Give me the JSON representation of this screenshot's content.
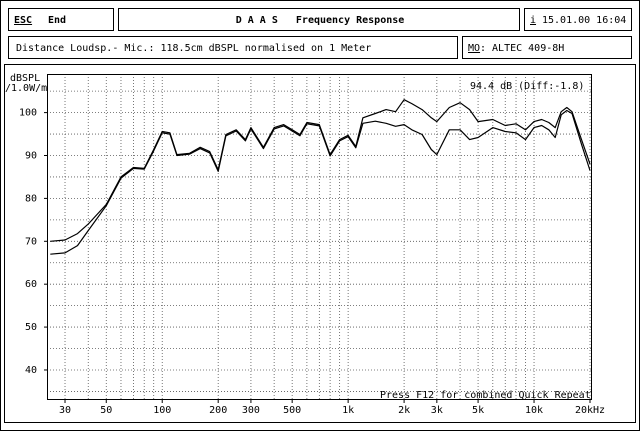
{
  "header": {
    "esc_key": "ESC",
    "esc_label": "End",
    "title": "D A A S   Frequency Response",
    "info_key": "i",
    "datetime": "15.01.00 16:04",
    "description": "Distance Loudsp.- Mic.: 118.5cm dBSPL normalised on 1 Meter",
    "model_key": "MO",
    "model": ": ALTEC 409-8H"
  },
  "chart_data": {
    "type": "line",
    "y_label": [
      "dBSPL",
      "/1.0W/m"
    ],
    "annotation": "94.4 dB (Diff:-1.8)",
    "footer_note": "Press F12 for combined Quick Repeat",
    "log_x": true,
    "grid": true,
    "xlim": [
      24,
      20500
    ],
    "ylim": [
      33,
      109
    ],
    "xticks": [
      30,
      50,
      100,
      200,
      300,
      500,
      {
        "value": 1000,
        "label": "1k"
      },
      {
        "value": 2000,
        "label": "2k"
      },
      {
        "value": 3000,
        "label": "3k"
      },
      {
        "value": 5000,
        "label": "5k"
      },
      {
        "value": 10000,
        "label": "10k"
      },
      {
        "value": 20000,
        "label": "20kHz"
      }
    ],
    "xgrid": [
      30,
      40,
      50,
      60,
      70,
      80,
      90,
      100,
      200,
      300,
      400,
      500,
      600,
      700,
      800,
      900,
      1000,
      2000,
      3000,
      4000,
      5000,
      6000,
      7000,
      8000,
      9000,
      10000,
      20000
    ],
    "yticks": [
      40,
      50,
      60,
      70,
      80,
      90,
      100
    ],
    "ygrid": [
      35,
      40,
      45,
      50,
      55,
      60,
      65,
      70,
      75,
      80,
      85,
      90,
      95,
      100,
      105
    ],
    "x": [
      25,
      30,
      35,
      40,
      50,
      60,
      70,
      80,
      90,
      100,
      110,
      120,
      140,
      160,
      180,
      200,
      220,
      250,
      280,
      300,
      350,
      400,
      450,
      500,
      550,
      600,
      700,
      800,
      900,
      1000,
      1100,
      1200,
      1400,
      1600,
      1800,
      2000,
      2200,
      2500,
      2800,
      3000,
      3500,
      4000,
      4500,
      5000,
      6000,
      7000,
      8000,
      9000,
      10000,
      11000,
      12000,
      13000,
      14000,
      15000,
      16000,
      18000,
      20000
    ],
    "series": [
      {
        "color": "#000000",
        "values": [
          70.0,
          70.3,
          71.8,
          74.0,
          78.6,
          85.0,
          87.2,
          87.0,
          91.4,
          95.6,
          95.3,
          90.2,
          90.5,
          91.9,
          90.9,
          86.7,
          94.9,
          96.0,
          93.7,
          96.5,
          91.9,
          96.5,
          97.2,
          96.0,
          94.9,
          97.7,
          97.2,
          90.2,
          93.7,
          94.7,
          92.1,
          98.8,
          99.8,
          100.7,
          100.2,
          103.0,
          102.1,
          100.7,
          98.8,
          97.9,
          101.2,
          102.3,
          100.7,
          97.9,
          98.4,
          97.0,
          97.4,
          96.0,
          97.9,
          98.4,
          97.7,
          96.5,
          100.2,
          101.2,
          100.2,
          93.7,
          88.0
        ]
      },
      {
        "color": "#000000",
        "values": [
          67.0,
          67.3,
          69.0,
          72.5,
          78.3,
          84.7,
          87.0,
          86.8,
          91.1,
          95.3,
          95.0,
          90.0,
          90.3,
          91.6,
          90.6,
          86.3,
          94.6,
          95.7,
          93.4,
          96.2,
          91.6,
          96.2,
          96.9,
          95.7,
          94.6,
          97.4,
          96.9,
          89.9,
          93.4,
          94.4,
          91.8,
          97.5,
          98.0,
          97.5,
          96.8,
          97.2,
          96.0,
          94.9,
          91.4,
          90.2,
          96.0,
          96.0,
          93.7,
          94.2,
          96.5,
          95.6,
          95.3,
          93.7,
          96.5,
          97.0,
          96.0,
          94.2,
          99.5,
          100.5,
          99.8,
          92.6,
          86.5
        ]
      }
    ]
  }
}
